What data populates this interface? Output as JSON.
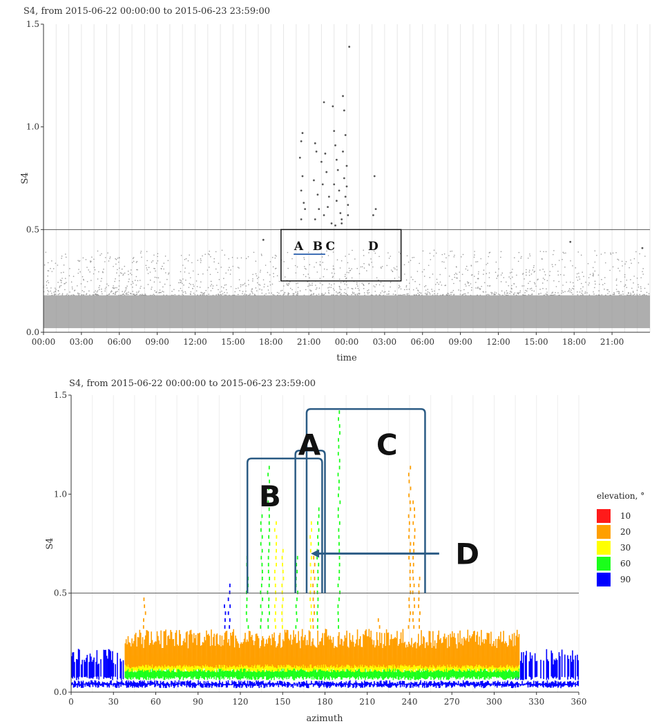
{
  "chart_data": [
    {
      "type": "scatter",
      "title": "S4, from 2015-06-22 00:00:00 to 2015-06-23 23:59:00",
      "xlabel": "time",
      "ylabel": "S4",
      "x_ticks": [
        "00:00",
        "03:00",
        "06:00",
        "09:00",
        "12:00",
        "15:00",
        "18:00",
        "21:00",
        "00:00",
        "03:00",
        "06:00",
        "09:00",
        "12:00",
        "15:00",
        "18:00",
        "21:00"
      ],
      "y_ticks": [
        "0.0",
        "0.5",
        "1.0",
        "1.5"
      ],
      "xlim_hours": [
        0,
        48
      ],
      "ylim": [
        0,
        1.5
      ],
      "threshold": 0.5,
      "grid": "vertical, every hour",
      "point_color": "#9a9a9a",
      "outlier_color": "#555555",
      "background_band": {
        "hours": [
          0,
          48
        ],
        "s4_range": [
          0.02,
          0.18
        ]
      },
      "outliers": [
        {
          "hour": 20.5,
          "s4": 0.97
        },
        {
          "hour": 20.4,
          "s4": 0.93
        },
        {
          "hour": 20.3,
          "s4": 0.85
        },
        {
          "hour": 20.5,
          "s4": 0.76
        },
        {
          "hour": 20.4,
          "s4": 0.69
        },
        {
          "hour": 20.6,
          "s4": 0.63
        },
        {
          "hour": 20.4,
          "s4": 0.55
        },
        {
          "hour": 20.7,
          "s4": 0.6
        },
        {
          "hour": 21.5,
          "s4": 0.92
        },
        {
          "hour": 21.6,
          "s4": 0.88
        },
        {
          "hour": 21.4,
          "s4": 0.74
        },
        {
          "hour": 21.7,
          "s4": 0.67
        },
        {
          "hour": 21.8,
          "s4": 0.6
        },
        {
          "hour": 21.5,
          "s4": 0.55
        },
        {
          "hour": 22.2,
          "s4": 1.12
        },
        {
          "hour": 22.3,
          "s4": 0.87
        },
        {
          "hour": 22.0,
          "s4": 0.83
        },
        {
          "hour": 22.4,
          "s4": 0.78
        },
        {
          "hour": 22.1,
          "s4": 0.72
        },
        {
          "hour": 22.6,
          "s4": 0.66
        },
        {
          "hour": 22.5,
          "s4": 0.61
        },
        {
          "hour": 22.2,
          "s4": 0.57
        },
        {
          "hour": 22.8,
          "s4": 0.53
        },
        {
          "hour": 22.9,
          "s4": 1.1
        },
        {
          "hour": 23.0,
          "s4": 0.98
        },
        {
          "hour": 23.1,
          "s4": 0.91
        },
        {
          "hour": 23.2,
          "s4": 0.84
        },
        {
          "hour": 23.3,
          "s4": 0.79
        },
        {
          "hour": 23.0,
          "s4": 0.72
        },
        {
          "hour": 23.4,
          "s4": 0.69
        },
        {
          "hour": 23.2,
          "s4": 0.64
        },
        {
          "hour": 23.5,
          "s4": 0.58
        },
        {
          "hour": 23.6,
          "s4": 0.55
        },
        {
          "hour": 23.1,
          "s4": 0.52
        },
        {
          "hour": 23.7,
          "s4": 1.15
        },
        {
          "hour": 23.8,
          "s4": 1.08
        },
        {
          "hour": 23.9,
          "s4": 0.96
        },
        {
          "hour": 23.7,
          "s4": 0.88
        },
        {
          "hour": 24.0,
          "s4": 0.81
        },
        {
          "hour": 23.8,
          "s4": 0.75
        },
        {
          "hour": 24.0,
          "s4": 0.71
        },
        {
          "hour": 23.9,
          "s4": 0.66
        },
        {
          "hour": 24.1,
          "s4": 0.62
        },
        {
          "hour": 24.1,
          "s4": 0.57
        },
        {
          "hour": 23.6,
          "s4": 0.53
        },
        {
          "hour": 24.2,
          "s4": 1.39
        },
        {
          "hour": 26.2,
          "s4": 0.76
        },
        {
          "hour": 26.3,
          "s4": 0.6
        },
        {
          "hour": 26.1,
          "s4": 0.57
        },
        {
          "hour": 17.4,
          "s4": 0.45
        },
        {
          "hour": 41.7,
          "s4": 0.44
        },
        {
          "hour": 47.4,
          "s4": 0.41
        }
      ],
      "annotation_box": {
        "hours": [
          18.8,
          28.3
        ],
        "s4_range": [
          0.25,
          0.5
        ]
      },
      "annotations": [
        {
          "text": "A",
          "hour": 20.2,
          "s4": 0.42
        },
        {
          "text": "B",
          "hour": 21.7,
          "s4": 0.42
        },
        {
          "text": "C",
          "hour": 22.7,
          "s4": 0.42
        },
        {
          "text": "D",
          "hour": 26.1,
          "s4": 0.42
        }
      ],
      "marker_segment": {
        "hours": [
          19.8,
          22.3
        ],
        "s4": 0.38
      }
    },
    {
      "type": "scatter",
      "title": "S4, from 2015-06-22 00:00:00 to 2015-06-23 23:59:00",
      "xlabel": "azimuth",
      "ylabel": "S4",
      "x_ticks": [
        "0",
        "30",
        "60",
        "90",
        "120",
        "150",
        "180",
        "210",
        "240",
        "270",
        "300",
        "330",
        "360"
      ],
      "y_ticks": [
        "0.0",
        "0.5",
        "1.0",
        "1.5"
      ],
      "xlim": [
        0,
        360
      ],
      "ylim": [
        0,
        1.5
      ],
      "threshold": 0.5,
      "legend": {
        "title": "elevation, °",
        "position": "right",
        "items": [
          {
            "label": "10",
            "color": "#ff1a1a"
          },
          {
            "label": "20",
            "color": "#ff9f00"
          },
          {
            "label": "30",
            "color": "#ffff00"
          },
          {
            "label": "60",
            "color": "#1aff1a"
          },
          {
            "label": "90",
            "color": "#0000ff"
          }
        ]
      },
      "bands": [
        {
          "elevation": "90",
          "az_range": [
            0,
            360
          ],
          "s4_range": [
            0.02,
            0.06
          ]
        },
        {
          "elevation": "90",
          "az_range": [
            0,
            38
          ],
          "s4_range": [
            0.06,
            0.22
          ]
        },
        {
          "elevation": "90",
          "az_range": [
            315,
            360
          ],
          "s4_range": [
            0.06,
            0.22
          ]
        },
        {
          "elevation": "60",
          "az_range": [
            38,
            318
          ],
          "s4_range": [
            0.06,
            0.14
          ]
        },
        {
          "elevation": "30",
          "az_range": [
            38,
            318
          ],
          "s4_range": [
            0.1,
            0.2
          ]
        },
        {
          "elevation": "20",
          "az_range": [
            38,
            318
          ],
          "s4_range": [
            0.12,
            0.32
          ]
        }
      ],
      "spikes": [
        {
          "elevation": "20",
          "azimuth": 240,
          "s4_max": 1.15
        },
        {
          "elevation": "20",
          "azimuth": 243,
          "s4_max": 0.98
        },
        {
          "elevation": "20",
          "azimuth": 247,
          "s4_max": 0.6
        },
        {
          "elevation": "60",
          "azimuth": 190,
          "s4_max": 1.42
        },
        {
          "elevation": "60",
          "azimuth": 140,
          "s4_max": 1.15
        },
        {
          "elevation": "60",
          "azimuth": 135,
          "s4_max": 0.9
        },
        {
          "elevation": "30",
          "azimuth": 145,
          "s4_max": 0.86
        },
        {
          "elevation": "30",
          "azimuth": 150,
          "s4_max": 0.72
        },
        {
          "elevation": "30",
          "azimuth": 170,
          "s4_max": 0.86
        },
        {
          "elevation": "60",
          "azimuth": 175,
          "s4_max": 0.95
        },
        {
          "elevation": "20",
          "azimuth": 172,
          "s4_max": 0.7
        },
        {
          "elevation": "60",
          "azimuth": 160,
          "s4_max": 0.68
        },
        {
          "elevation": "60",
          "azimuth": 125,
          "s4_max": 0.7
        },
        {
          "elevation": "90",
          "azimuth": 112,
          "s4_max": 0.55
        },
        {
          "elevation": "90",
          "azimuth": 109,
          "s4_max": 0.45
        },
        {
          "elevation": "20",
          "azimuth": 52,
          "s4_max": 0.47
        },
        {
          "elevation": "20",
          "azimuth": 218,
          "s4_max": 0.36
        }
      ],
      "brackets": [
        {
          "label": "B",
          "az_range": [
            125,
            178
          ],
          "s4_top": 1.18
        },
        {
          "label": "A",
          "az_range": [
            159,
            180
          ],
          "s4_top": 1.22
        },
        {
          "label": "C",
          "az_range": [
            167,
            251
          ],
          "s4_top": 1.43
        }
      ],
      "annotations": [
        {
          "text": "A",
          "azimuth": 169,
          "s4": 1.25
        },
        {
          "text": "B",
          "azimuth": 141,
          "s4": 0.99
        },
        {
          "text": "C",
          "azimuth": 224,
          "s4": 1.25
        },
        {
          "text": "D",
          "azimuth": 281,
          "s4": 0.7
        }
      ],
      "arrow": {
        "from_azimuth": 261,
        "to_azimuth": 170,
        "s4": 0.7
      }
    }
  ]
}
